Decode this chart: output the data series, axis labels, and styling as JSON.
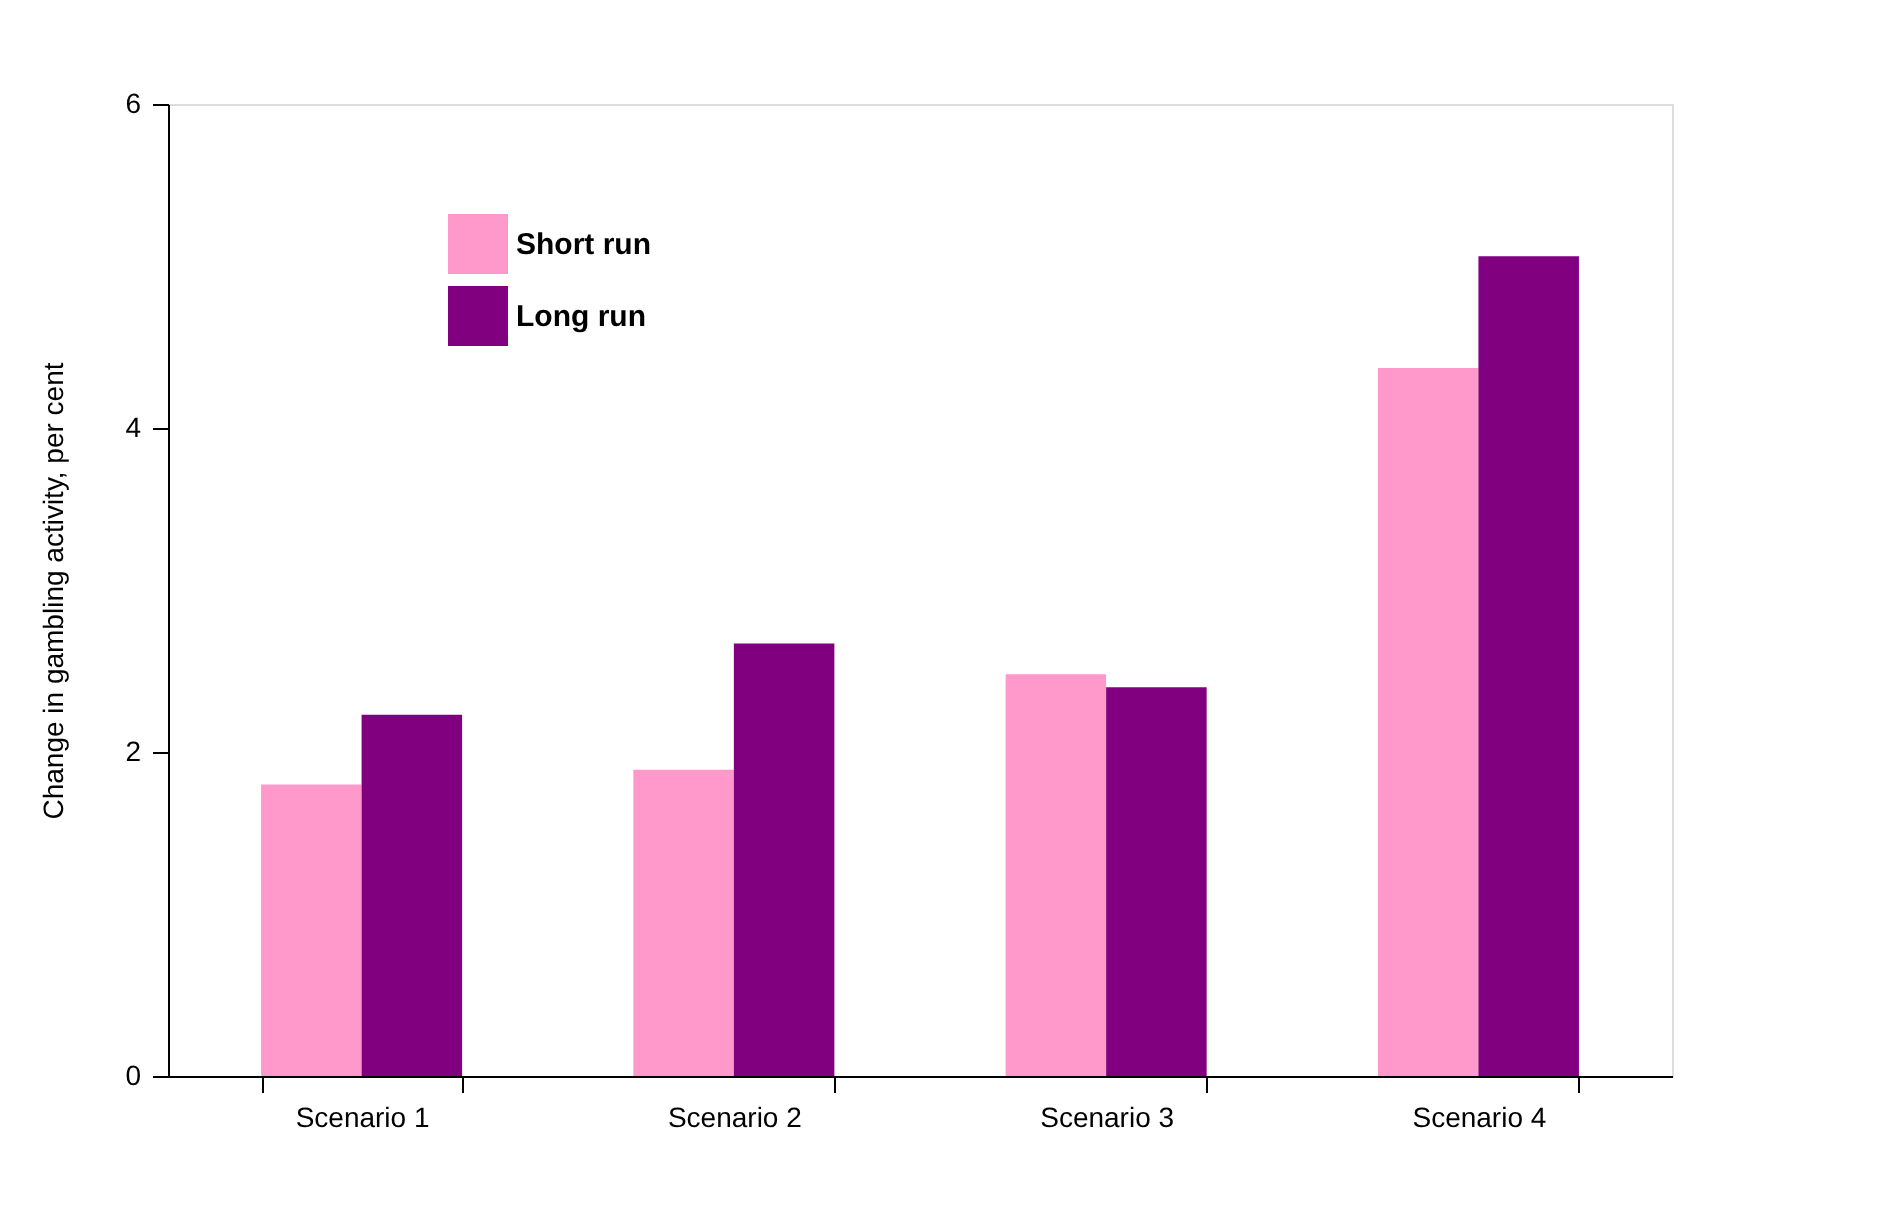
{
  "chart_data": {
    "type": "bar",
    "ylabel": "Change in gambling activity, per cent",
    "categories": [
      "Scenario 1",
      "Scenario 2",
      "Scenario 3",
      "Scenario 4"
    ],
    "series": [
      {
        "name": "Short run",
        "color": "#ff99cc",
        "values": [
          1.8,
          1.89,
          2.48,
          4.37
        ]
      },
      {
        "name": "Long run",
        "color": "#800080",
        "values": [
          2.23,
          2.67,
          2.4,
          5.06
        ]
      }
    ],
    "ylim": [
      0,
      6
    ],
    "yticks": [
      0,
      2,
      4,
      6
    ],
    "grid": false,
    "legend": "top left"
  }
}
